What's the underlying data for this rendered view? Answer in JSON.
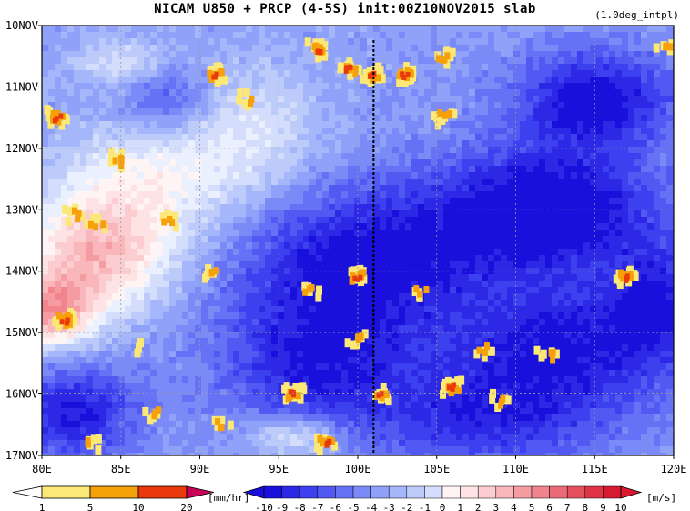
{
  "title": "NICAM   U850 + PRCP (4-5S) init:00Z10NOV2015 slab",
  "subtitle": "(1.0deg_intpl)",
  "chart_data": {
    "type": "heatmap",
    "x_axis": {
      "ticks": [
        "80E",
        "85E",
        "90E",
        "95E",
        "100E",
        "105E",
        "110E",
        "115E",
        "120E"
      ],
      "range": [
        80,
        120
      ]
    },
    "y_axis": {
      "ticks": [
        "10NOV",
        "11NOV",
        "12NOV",
        "13NOV",
        "14NOV",
        "15NOV",
        "16NOV",
        "17NOV"
      ],
      "range": [
        "10NOV",
        "17NOV"
      ],
      "direction": "top-to-bottom"
    },
    "grid": true,
    "vertical_marker_lon": 101,
    "u850_blobs": [
      {
        "lon": 83.5,
        "day": 3.8,
        "rx": 5,
        "ry": 0.9,
        "v": 6
      },
      {
        "lon": 80.5,
        "day": 4.7,
        "rx": 3,
        "ry": 0.6,
        "v": 7
      },
      {
        "lon": 86,
        "day": 2.6,
        "rx": 6,
        "ry": 1.0,
        "v": 3
      },
      {
        "lon": 93,
        "day": 1.8,
        "rx": 5,
        "ry": 1.2,
        "v": 2
      },
      {
        "lon": 85,
        "day": 0.6,
        "rx": 3,
        "ry": 0.4,
        "v": 2
      },
      {
        "lon": 96,
        "day": 6.7,
        "rx": 3,
        "ry": 0.35,
        "v": 3
      },
      {
        "lon": 88,
        "day": 1.2,
        "rx": 3,
        "ry": 0.6,
        "v": -4
      },
      {
        "lon": 100,
        "day": 3.9,
        "rx": 8,
        "ry": 1.3,
        "v": -7
      },
      {
        "lon": 112,
        "day": 3.0,
        "rx": 7,
        "ry": 1.0,
        "v": -8
      },
      {
        "lon": 115,
        "day": 1.2,
        "rx": 5,
        "ry": 0.8,
        "v": -7
      },
      {
        "lon": 113,
        "day": 5.2,
        "rx": 7,
        "ry": 1.0,
        "v": -6
      },
      {
        "lon": 108,
        "day": 6.4,
        "rx": 8,
        "ry": 0.8,
        "v": -5
      },
      {
        "lon": 82,
        "day": 6.3,
        "rx": 4,
        "ry": 0.8,
        "v": -6
      },
      {
        "lon": 97,
        "day": 5.6,
        "rx": 6,
        "ry": 1.0,
        "v": -5
      },
      {
        "lon": 119,
        "day": 4.5,
        "rx": 3,
        "ry": 1.0,
        "v": -5
      }
    ],
    "prcp_events": [
      {
        "lon": 81,
        "day": 1.5,
        "int": 12
      },
      {
        "lon": 81.5,
        "day": 4.8,
        "int": 15
      },
      {
        "lon": 85,
        "day": 2.2,
        "int": 8
      },
      {
        "lon": 83.5,
        "day": 3.2,
        "int": 6
      },
      {
        "lon": 82,
        "day": 3.1,
        "int": 5
      },
      {
        "lon": 88,
        "day": 3.2,
        "int": 5
      },
      {
        "lon": 91,
        "day": 0.8,
        "int": 12
      },
      {
        "lon": 93,
        "day": 1.2,
        "int": 6
      },
      {
        "lon": 97.5,
        "day": 0.4,
        "int": 12
      },
      {
        "lon": 99.5,
        "day": 0.7,
        "int": 10
      },
      {
        "lon": 101,
        "day": 0.8,
        "int": 12
      },
      {
        "lon": 103,
        "day": 0.8,
        "int": 12
      },
      {
        "lon": 105.5,
        "day": 0.5,
        "int": 8
      },
      {
        "lon": 105.5,
        "day": 1.5,
        "int": 8
      },
      {
        "lon": 119.5,
        "day": 0.3,
        "int": 6
      },
      {
        "lon": 100,
        "day": 4.1,
        "int": 12
      },
      {
        "lon": 97,
        "day": 4.3,
        "int": 6
      },
      {
        "lon": 104,
        "day": 4.3,
        "int": 5
      },
      {
        "lon": 117,
        "day": 4.1,
        "int": 12
      },
      {
        "lon": 100,
        "day": 5.1,
        "int": 6
      },
      {
        "lon": 96,
        "day": 6.0,
        "int": 15
      },
      {
        "lon": 101.5,
        "day": 6.0,
        "int": 10
      },
      {
        "lon": 106,
        "day": 5.9,
        "int": 12
      },
      {
        "lon": 98,
        "day": 6.8,
        "int": 10
      },
      {
        "lon": 109,
        "day": 6.1,
        "int": 6
      },
      {
        "lon": 91.5,
        "day": 6.5,
        "int": 5
      },
      {
        "lon": 83,
        "day": 6.8,
        "int": 5
      },
      {
        "lon": 91,
        "day": 4.0,
        "int": 5
      },
      {
        "lon": 108,
        "day": 5.3,
        "int": 5
      },
      {
        "lon": 87,
        "day": 6.3,
        "int": 5
      },
      {
        "lon": 112,
        "day": 5.4,
        "int": 5
      },
      {
        "lon": 86,
        "day": 5.2,
        "int": 3
      }
    ]
  },
  "colorbars": {
    "prcp": {
      "labels": [
        "1",
        "5",
        "10",
        "20"
      ],
      "unit": "[mm/hr]",
      "colors": [
        "#fbe876",
        "#f6a00a",
        "#ea3a0c",
        "#c8005a"
      ]
    },
    "u850": {
      "labels": [
        "-10",
        "-9",
        "-8",
        "-7",
        "-6",
        "-5",
        "-4",
        "-3",
        "-2",
        "-1",
        "0",
        "1",
        "2",
        "3",
        "4",
        "5",
        "6",
        "7",
        "8",
        "9",
        "10"
      ],
      "unit": "[m/s]",
      "colors": [
        "#1a10dc",
        "#2c28e6",
        "#3c40ee",
        "#5258f2",
        "#6672f5",
        "#7a8af7",
        "#8fa1f8",
        "#a6b6fa",
        "#bdcbfb",
        "#d4defc",
        "#eaf0fe",
        "#fff4f4",
        "#fde3e4",
        "#fbcdd0",
        "#f9b6bb",
        "#f59ca3",
        "#f1848c",
        "#ec6a75",
        "#e6505e",
        "#df3446",
        "#d81a30"
      ]
    }
  }
}
